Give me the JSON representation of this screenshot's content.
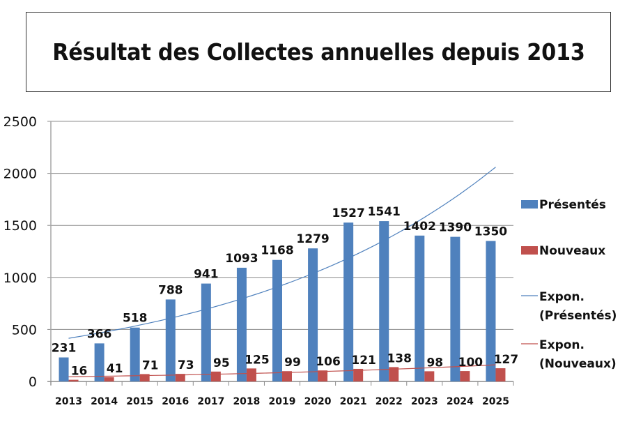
{
  "chart_data": {
    "type": "bar",
    "title": "Résultat des Collectes annuelles depuis 2013",
    "xlabel": "",
    "ylabel": "",
    "ylim": [
      0,
      2500
    ],
    "yticks": [
      "0",
      "500",
      "1000",
      "1500",
      "2000",
      "2500"
    ],
    "grid": true,
    "legend_position": "right",
    "categories": [
      "2013",
      "2014",
      "2015",
      "2016",
      "2017",
      "2018",
      "2019",
      "2020",
      "2021",
      "2022",
      "2023",
      "2024",
      "2025"
    ],
    "series": [
      {
        "name": "Présentés",
        "color": "#4F81BD",
        "values": [
          231,
          366,
          518,
          788,
          941,
          1093,
          1168,
          1279,
          1527,
          1541,
          1402,
          1390,
          1350
        ]
      },
      {
        "name": "Nouveaux",
        "color": "#C0504D",
        "values": [
          16,
          41,
          71,
          73,
          95,
          125,
          99,
          106,
          121,
          138,
          98,
          100,
          127
        ]
      }
    ],
    "trendlines": [
      {
        "name": "Expon. (Présentés)",
        "type": "exponential",
        "color": "#4F81BD",
        "start_value": 415,
        "end_value": 2060
      },
      {
        "name": "Expon. (Nouveaux)",
        "type": "exponential",
        "color": "#C0504D",
        "start_value": 45,
        "end_value": 160
      }
    ],
    "legend": [
      "Présentés",
      "Nouveaux",
      "Expon. (Présentés)",
      "Expon. (Nouveaux)"
    ]
  }
}
